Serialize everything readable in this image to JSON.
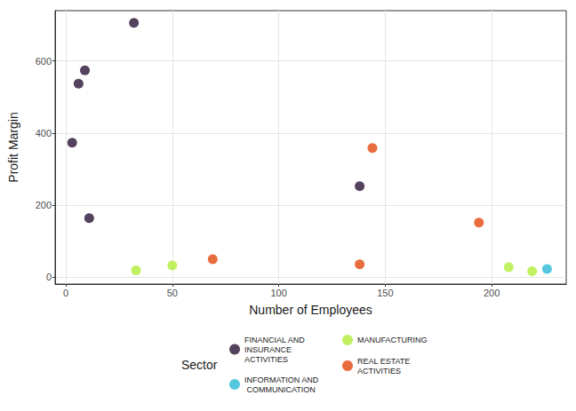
{
  "chart_data": {
    "type": "scatter",
    "x_label": "Number of Employees",
    "y_label": "Profit Margin",
    "legend_title": "Sector",
    "legend": "bottom",
    "grid": true,
    "xlim": [
      -5,
      235
    ],
    "xticks": [
      0,
      50,
      100,
      150,
      200
    ],
    "ylim": [
      -20,
      740
    ],
    "yticks": [
      0,
      200,
      400,
      600
    ],
    "series": [
      {
        "name": "FINANCIAL AND INSURANCE ACTIVITIES",
        "color": "#2B1436",
        "x": [
          3,
          6,
          9,
          11,
          32,
          138
        ],
        "values": [
          373,
          537,
          574,
          163,
          706,
          252
        ]
      },
      {
        "name": "INFORMATION AND COMMUNICATION",
        "color": "#2BB8D6",
        "x": [
          226
        ],
        "values": [
          22
        ]
      },
      {
        "name": "MANUFACTURING",
        "color": "#B2EE3A",
        "x": [
          33,
          50,
          208,
          219
        ],
        "values": [
          18,
          32,
          27,
          16
        ]
      },
      {
        "name": "REAL ESTATE ACTIVITIES",
        "color": "#E3470F",
        "x": [
          69,
          138,
          144,
          194
        ],
        "values": [
          49,
          35,
          358,
          151
        ]
      }
    ]
  }
}
